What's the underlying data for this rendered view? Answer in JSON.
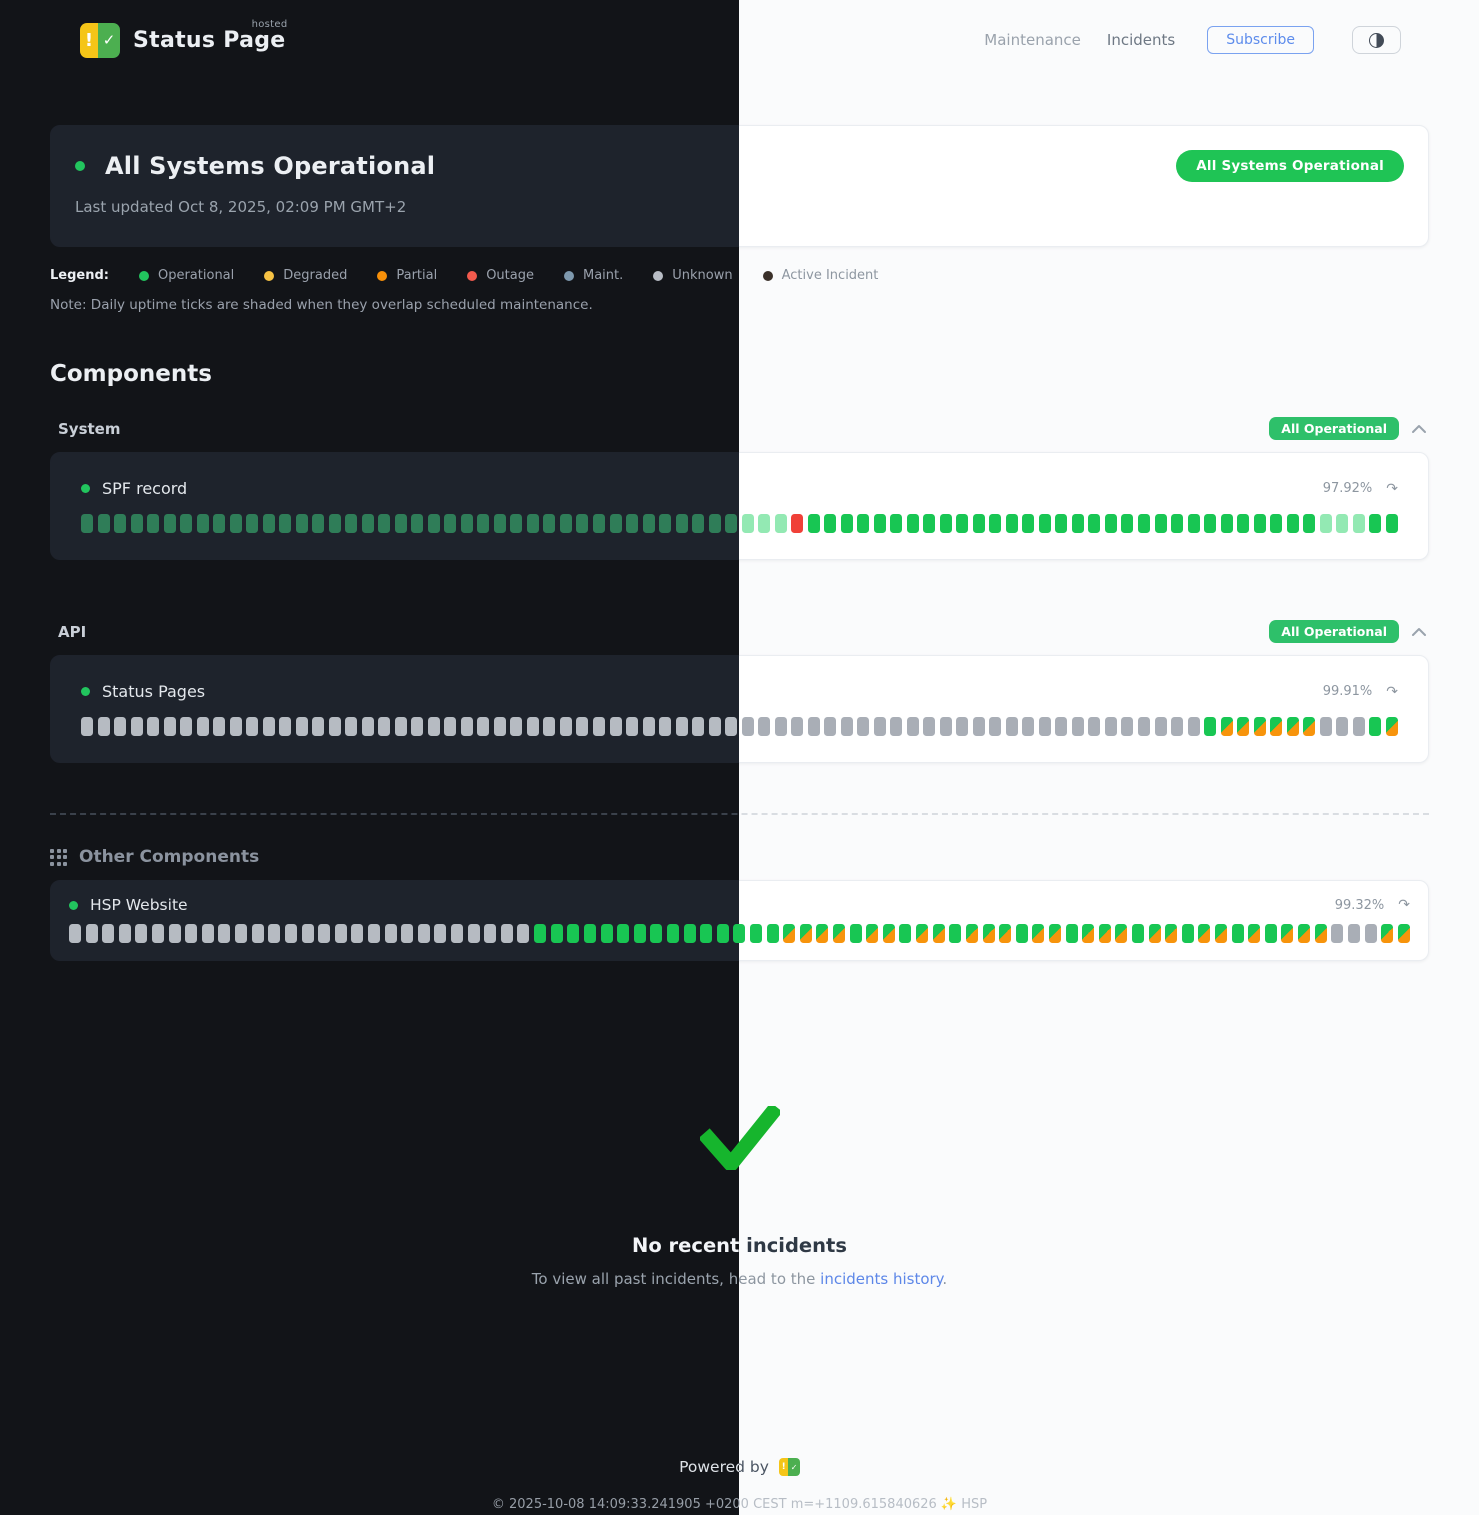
{
  "header": {
    "brand": "Status Page",
    "brand_sup": "hosted",
    "nav": {
      "maintenance": "Maintenance",
      "incidents": "Incidents"
    },
    "subscribe_label": "Subscribe"
  },
  "status": {
    "title": "All Systems Operational",
    "updated": "Last updated Oct 8, 2025, 02:09 PM GMT+2",
    "badge": "All Systems Operational",
    "badge_color": "#1fc455"
  },
  "legend": {
    "label": "Legend:",
    "items": [
      {
        "label": "Operational",
        "color": "#22c55e"
      },
      {
        "label": "Degraded",
        "color": "#f6c244"
      },
      {
        "label": "Partial",
        "color": "#f79009"
      },
      {
        "label": "Outage",
        "color": "#f25a4d"
      },
      {
        "label": "Maint.",
        "color": "#7e99ae"
      },
      {
        "label": "Unknown",
        "color": "#b8bdc5"
      },
      {
        "label": "Active Incident",
        "color": "#3a3029"
      }
    ],
    "note": "Note: Daily uptime ticks are shaded when they overlap scheduled maintenance."
  },
  "components": {
    "heading": "Components",
    "tick_legend": {
      "op": "operational",
      "opd": "operational-dim",
      "sh": "operational-shaded",
      "out": "outage",
      "unk": "unknown",
      "m": "maintenance-overlap"
    },
    "groups": [
      {
        "name": "System",
        "badge": "All Operational",
        "items": [
          {
            "name": "SPF record",
            "uptime": "97.92%",
            "ticks": [
              [
                "opd",
                40
              ],
              [
                "sh",
                3
              ],
              [
                "out",
                1
              ],
              [
                "op",
                31
              ],
              [
                "sh",
                3
              ],
              [
                "op",
                2
              ]
            ]
          }
        ]
      },
      {
        "name": "API",
        "badge": "All Operational",
        "items": [
          {
            "name": "Status Pages",
            "uptime": "99.91%",
            "ticks": [
              [
                "unk",
                68
              ],
              [
                "op",
                1
              ],
              [
                "m",
                6
              ],
              [
                "unk",
                3
              ],
              [
                "op",
                1
              ],
              [
                "m",
                1
              ]
            ]
          }
        ]
      }
    ],
    "other": {
      "heading": "Other Components",
      "items": [
        {
          "name": "HSP Website",
          "uptime": "99.32%",
          "ticks": [
            [
              "unk",
              28
            ],
            [
              "op",
              15
            ],
            [
              "m",
              4
            ],
            [
              "op",
              1
            ],
            [
              "m",
              2
            ],
            [
              "op",
              1
            ],
            [
              "m",
              2
            ],
            [
              "op",
              1
            ],
            [
              "m",
              3
            ],
            [
              "op",
              1
            ],
            [
              "m",
              2
            ],
            [
              "op",
              1
            ],
            [
              "m",
              3
            ],
            [
              "op",
              1
            ],
            [
              "m",
              2
            ],
            [
              "op",
              1
            ],
            [
              "m",
              2
            ],
            [
              "op",
              1
            ],
            [
              "m",
              1
            ],
            [
              "op",
              1
            ],
            [
              "m",
              3
            ],
            [
              "unk",
              3
            ],
            [
              "m",
              2
            ]
          ]
        }
      ]
    }
  },
  "incidents_section": {
    "title": "No recent incidents",
    "subtitle_prefix": "To view all past incidents, head to the ",
    "link_label": "incidents history",
    "subtitle_suffix": "."
  },
  "footer": {
    "powered_by": "Powered by",
    "copyright": "© 2025-10-08 14:09:33.241905 +0200 CEST m=+1109.615840626 ✨ HSP"
  }
}
